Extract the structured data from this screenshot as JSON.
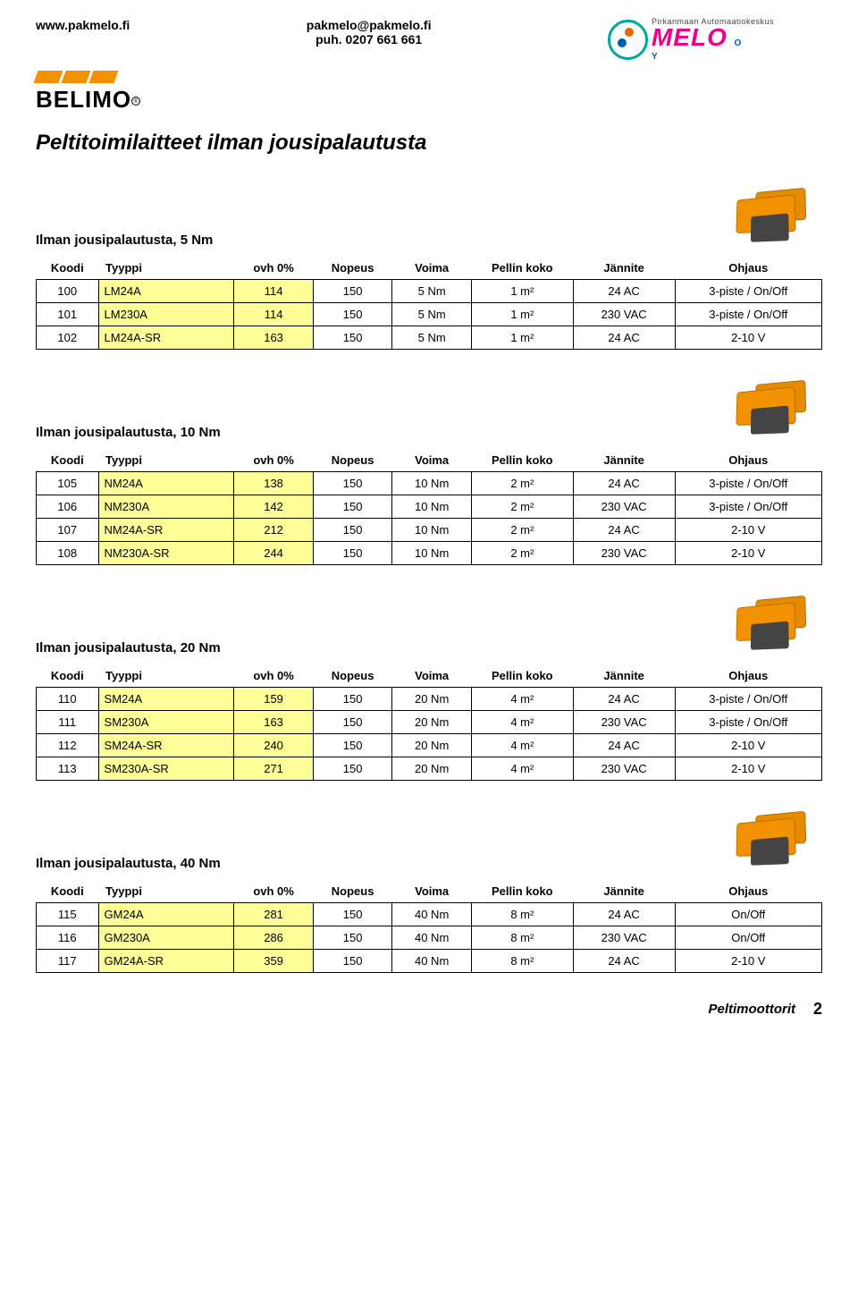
{
  "header": {
    "left": "www.pakmelo.fi",
    "center_line1": "pakmelo@pakmelo.fi",
    "center_line2": "puh. 0207 661 661",
    "right_small": "Pirkanmaan Automaatiokeskus",
    "right_big": "MELO",
    "right_oy1": "O",
    "right_oy2": "Y"
  },
  "belimo": {
    "name": "BELIMO",
    "reg": "®"
  },
  "page_title": "Peltitoimilaitteet ilman jousipalautusta",
  "table_headers": {
    "koodi": "Koodi",
    "tyyppi": "Tyyppi",
    "ovh": "ovh 0%",
    "nopeus": "Nopeus",
    "voima": "Voima",
    "pellin": "Pellin koko",
    "jannite": "Jännite",
    "ohjaus": "Ohjaus"
  },
  "sections": [
    {
      "title": "Ilman jousipalautusta, 5 Nm",
      "rows": [
        {
          "koodi": "100",
          "tyyppi": "LM24A",
          "ovh": "114",
          "nopeus": "150",
          "voima": "5 Nm",
          "pellin": "1 m²",
          "jannite": "24 AC",
          "ohjaus": "3-piste / On/Off"
        },
        {
          "koodi": "101",
          "tyyppi": "LM230A",
          "ovh": "114",
          "nopeus": "150",
          "voima": "5 Nm",
          "pellin": "1 m²",
          "jannite": "230 VAC",
          "ohjaus": "3-piste / On/Off"
        },
        {
          "koodi": "102",
          "tyyppi": "LM24A-SR",
          "ovh": "163",
          "nopeus": "150",
          "voima": "5 Nm",
          "pellin": "1 m²",
          "jannite": "24 AC",
          "ohjaus": "2-10 V"
        }
      ]
    },
    {
      "title": "Ilman jousipalautusta, 10 Nm",
      "rows": [
        {
          "koodi": "105",
          "tyyppi": "NM24A",
          "ovh": "138",
          "nopeus": "150",
          "voima": "10 Nm",
          "pellin": "2 m²",
          "jannite": "24 AC",
          "ohjaus": "3-piste / On/Off"
        },
        {
          "koodi": "106",
          "tyyppi": "NM230A",
          "ovh": "142",
          "nopeus": "150",
          "voima": "10 Nm",
          "pellin": "2 m²",
          "jannite": "230 VAC",
          "ohjaus": "3-piste / On/Off"
        },
        {
          "koodi": "107",
          "tyyppi": "NM24A-SR",
          "ovh": "212",
          "nopeus": "150",
          "voima": "10 Nm",
          "pellin": "2 m²",
          "jannite": "24 AC",
          "ohjaus": "2-10 V"
        },
        {
          "koodi": "108",
          "tyyppi": "NM230A-SR",
          "ovh": "244",
          "nopeus": "150",
          "voima": "10 Nm",
          "pellin": "2 m²",
          "jannite": "230 VAC",
          "ohjaus": "2-10 V"
        }
      ]
    },
    {
      "title": "Ilman jousipalautusta, 20 Nm",
      "rows": [
        {
          "koodi": "110",
          "tyyppi": "SM24A",
          "ovh": "159",
          "nopeus": "150",
          "voima": "20 Nm",
          "pellin": "4 m²",
          "jannite": "24 AC",
          "ohjaus": "3-piste / On/Off"
        },
        {
          "koodi": "111",
          "tyyppi": "SM230A",
          "ovh": "163",
          "nopeus": "150",
          "voima": "20 Nm",
          "pellin": "4 m²",
          "jannite": "230 VAC",
          "ohjaus": "3-piste / On/Off"
        },
        {
          "koodi": "112",
          "tyyppi": "SM24A-SR",
          "ovh": "240",
          "nopeus": "150",
          "voima": "20 Nm",
          "pellin": "4 m²",
          "jannite": "24 AC",
          "ohjaus": "2-10 V"
        },
        {
          "koodi": "113",
          "tyyppi": "SM230A-SR",
          "ovh": "271",
          "nopeus": "150",
          "voima": "20 Nm",
          "pellin": "4 m²",
          "jannite": "230 VAC",
          "ohjaus": "2-10 V"
        }
      ]
    },
    {
      "title": "Ilman jousipalautusta, 40 Nm",
      "rows": [
        {
          "koodi": "115",
          "tyyppi": "GM24A",
          "ovh": "281",
          "nopeus": "150",
          "voima": "40 Nm",
          "pellin": "8 m²",
          "jannite": "24 AC",
          "ohjaus": "On/Off"
        },
        {
          "koodi": "116",
          "tyyppi": "GM230A",
          "ovh": "286",
          "nopeus": "150",
          "voima": "40 Nm",
          "pellin": "8 m²",
          "jannite": "230 VAC",
          "ohjaus": "On/Off"
        },
        {
          "koodi": "117",
          "tyyppi": "GM24A-SR",
          "ovh": "359",
          "nopeus": "150",
          "voima": "40 Nm",
          "pellin": "8 m²",
          "jannite": "24 AC",
          "ohjaus": "2-10 V"
        }
      ]
    }
  ],
  "footer": {
    "label": "Peltimoottorit",
    "page": "2"
  }
}
